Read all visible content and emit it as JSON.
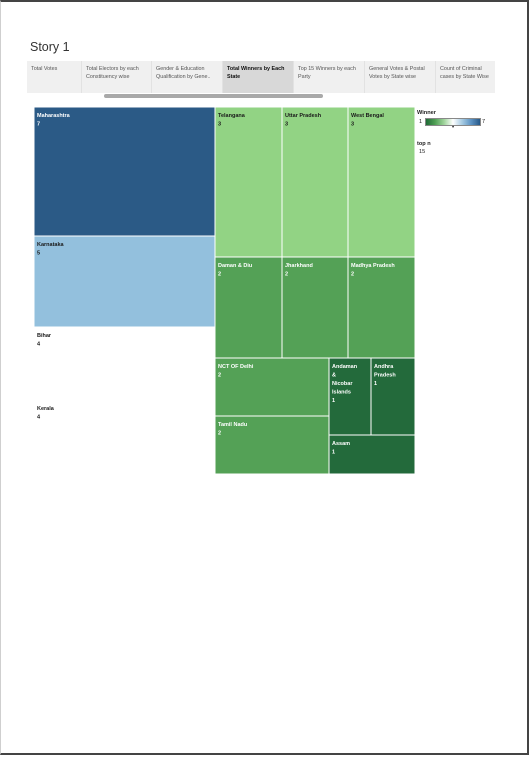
{
  "story": {
    "title": "Story 1"
  },
  "tabs": [
    {
      "label": "Total Votes",
      "active": false
    },
    {
      "label": "Total Electors by each Constituency wise",
      "active": false
    },
    {
      "label": "Gender & Education Qualification by Gene..",
      "active": false
    },
    {
      "label": "Total Winners by Each State",
      "active": true
    },
    {
      "label": "Top 15 Winners by each Party",
      "active": false
    },
    {
      "label": "General Votes & Postal Votes by State wise",
      "active": false
    },
    {
      "label": "Count of Criminal cases by State Wise",
      "active": false
    }
  ],
  "legend": {
    "title": "Winner",
    "min": "1",
    "max": "7",
    "marker": "•"
  },
  "topn": {
    "title": "top n",
    "value": "15"
  },
  "colors": {
    "blue_dark": "#2b5a86",
    "blue_light": "#93c0dd",
    "green_light": "#92d384",
    "green_mid": "#54a156",
    "green_dark": "#236a3b",
    "white": "#ffffff"
  },
  "chart_data": {
    "type": "treemap",
    "title": "",
    "measure": "Winner",
    "color_range": [
      1,
      7
    ],
    "items": [
      {
        "label": "Maharashtra",
        "value": 7,
        "color": "blue_dark"
      },
      {
        "label": "Karnataka",
        "value": 5,
        "color": "blue_light"
      },
      {
        "label": "Bihar",
        "value": 4,
        "color": "white"
      },
      {
        "label": "Kerala",
        "value": 4,
        "color": "white"
      },
      {
        "label": "Telangana",
        "value": 3,
        "color": "green_light"
      },
      {
        "label": "Uttar Pradesh",
        "value": 3,
        "color": "green_light"
      },
      {
        "label": "West Bengal",
        "value": 3,
        "color": "green_light"
      },
      {
        "label": "Daman & Diu",
        "value": 2,
        "color": "green_mid"
      },
      {
        "label": "Jharkhand",
        "value": 2,
        "color": "green_mid"
      },
      {
        "label": "Madhya Pradesh",
        "value": 2,
        "color": "green_mid"
      },
      {
        "label": "NCT OF Delhi",
        "value": 2,
        "color": "green_mid"
      },
      {
        "label": "Tamil Nadu",
        "value": 2,
        "color": "green_mid"
      },
      {
        "label": "Andaman & Nicobar Islands",
        "value": 1,
        "color": "green_dark"
      },
      {
        "label": "Andhra Pradesh",
        "value": 1,
        "color": "green_dark"
      },
      {
        "label": "Assam",
        "value": 1,
        "color": "green_dark"
      }
    ]
  }
}
